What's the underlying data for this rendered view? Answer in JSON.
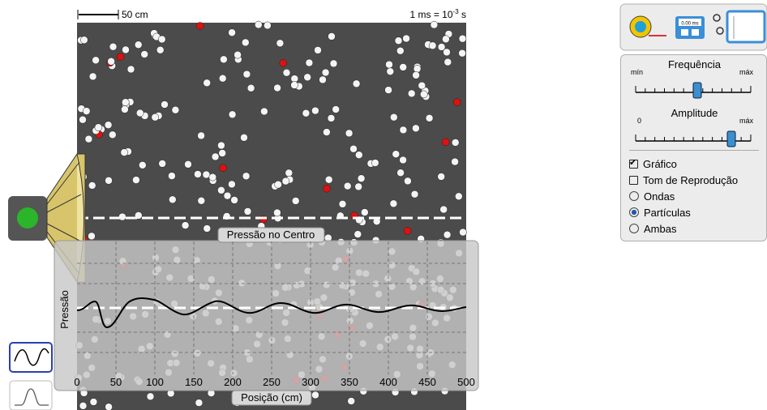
{
  "scale": {
    "length": "50 cm",
    "time_prefix": "1 ms = 10",
    "time_exponent": "-3",
    "time_unit": "s"
  },
  "graph": {
    "title": "Pressão no Centro",
    "y_label": "Pressão",
    "x_label": "Posição (cm)",
    "x_tick_labels": [
      "0",
      "50",
      "100",
      "150",
      "200",
      "250",
      "300",
      "350",
      "400",
      "450",
      "500"
    ]
  },
  "tools": {
    "stopwatch": "0.00 ms"
  },
  "controls": {
    "frequency": {
      "label": "Frequência",
      "min": "mín",
      "max": "máx"
    },
    "amplitude": {
      "label": "Amplitude",
      "min": "0",
      "max": "máx"
    },
    "checkboxes": [
      {
        "label": "Gráfico",
        "checked": true
      },
      {
        "label": "Tom de Reprodução",
        "checked": false
      }
    ],
    "radios": [
      {
        "label": "Ondas",
        "selected": false
      },
      {
        "label": "Partículas",
        "selected": true
      },
      {
        "label": "Ambas",
        "selected": false
      }
    ]
  }
}
